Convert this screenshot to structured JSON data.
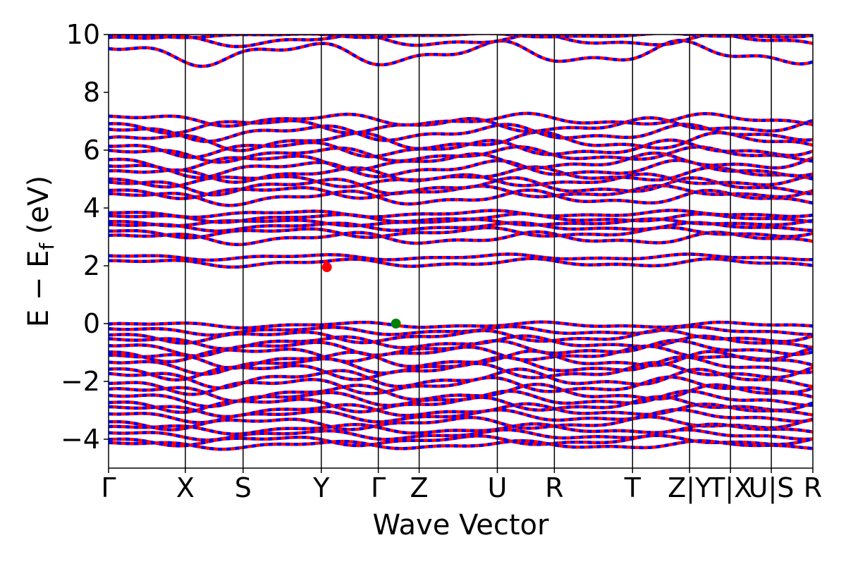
{
  "chart_data": {
    "type": "line",
    "xlabel": "Wave Vector",
    "ylabel": "E − E",
    "ylabel_subscript": "f",
    "ylabel_unit": " (eV)",
    "ylim": [
      -5,
      10
    ],
    "yticks": [
      {
        "value": -4,
        "label": "−4"
      },
      {
        "value": -2,
        "label": "−2"
      },
      {
        "value": 0,
        "label": "0"
      },
      {
        "value": 2,
        "label": "2"
      },
      {
        "value": 4,
        "label": "4"
      },
      {
        "value": 6,
        "label": "6"
      },
      {
        "value": 8,
        "label": "8"
      },
      {
        "value": 10,
        "label": "10"
      }
    ],
    "xlim": [
      0,
      10
    ],
    "kpoints": [
      {
        "label": "Γ",
        "x": 0.0
      },
      {
        "label": "X",
        "x": 1.09
      },
      {
        "label": "S",
        "x": 1.91
      },
      {
        "label": "Y",
        "x": 3.02
      },
      {
        "label": "Γ",
        "x": 3.83
      },
      {
        "label": "Z",
        "x": 4.41
      },
      {
        "label": "U",
        "x": 5.52
      },
      {
        "label": "R",
        "x": 6.33
      },
      {
        "label": "T",
        "x": 7.44
      },
      {
        "label": "Z|Y",
        "x": 8.25
      },
      {
        "label": "T|X",
        "x": 8.83
      },
      {
        "label": "U|S",
        "x": 9.41
      },
      {
        "label": "R",
        "x": 10.0
      }
    ],
    "line_colors": {
      "band_red": "#ff0000",
      "band_blue": "#0000ff",
      "vline": "#000000"
    },
    "markers": [
      {
        "name": "CBM",
        "x": 3.1,
        "y": 1.95,
        "color": "#ff0000"
      },
      {
        "name": "VBM",
        "x": 4.08,
        "y": 0.0,
        "color": "#008000"
      }
    ],
    "bands": {
      "conduction": [
        {
          "y0": 2.1,
          "amp": 0.1,
          "phase": 0.4
        },
        {
          "y0": 2.3,
          "amp": 0.07,
          "phase": 1.3
        },
        {
          "y0": 2.95,
          "amp": 0.15,
          "phase": 0.2
        },
        {
          "y0": 3.15,
          "amp": 0.12,
          "phase": 2.1
        },
        {
          "y0": 3.35,
          "amp": 0.1,
          "phase": 1.0
        },
        {
          "y0": 3.5,
          "amp": 0.08,
          "phase": 2.7
        },
        {
          "y0": 3.65,
          "amp": 0.1,
          "phase": 0.8
        },
        {
          "y0": 3.8,
          "amp": 0.08,
          "phase": 1.9
        },
        {
          "y0": 4.35,
          "amp": 0.18,
          "phase": 0.5
        },
        {
          "y0": 4.55,
          "amp": 0.15,
          "phase": 2.4
        },
        {
          "y0": 4.75,
          "amp": 0.2,
          "phase": 1.1
        },
        {
          "y0": 4.95,
          "amp": 0.15,
          "phase": 3.0
        },
        {
          "y0": 5.15,
          "amp": 0.18,
          "phase": 0.3
        },
        {
          "y0": 5.35,
          "amp": 0.2,
          "phase": 1.7
        },
        {
          "y0": 5.6,
          "amp": 0.2,
          "phase": 2.6
        },
        {
          "y0": 5.85,
          "amp": 0.18,
          "phase": 0.9
        },
        {
          "y0": 6.05,
          "amp": 0.2,
          "phase": 2.0
        },
        {
          "y0": 6.3,
          "amp": 0.22,
          "phase": 0.1
        },
        {
          "y0": 6.6,
          "amp": 0.2,
          "phase": 1.4
        },
        {
          "y0": 6.85,
          "amp": 0.18,
          "phase": 2.8
        },
        {
          "y0": 7.05,
          "amp": 0.15,
          "phase": 0.6
        },
        {
          "y0": 9.35,
          "amp": 0.3,
          "phase": 1.6
        },
        {
          "y0": 9.8,
          "amp": 0.15,
          "phase": 0.2
        },
        {
          "y0": 9.97,
          "amp": 0.05,
          "phase": 2.2
        }
      ],
      "valence": [
        {
          "y0": -0.05,
          "amp": 0.07,
          "phase": 0.0
        },
        {
          "y0": -0.25,
          "amp": 0.1,
          "phase": 1.2
        },
        {
          "y0": -0.45,
          "amp": 0.15,
          "phase": 2.3
        },
        {
          "y0": -0.65,
          "amp": 0.15,
          "phase": 0.7
        },
        {
          "y0": -0.85,
          "amp": 0.18,
          "phase": 1.8
        },
        {
          "y0": -1.05,
          "amp": 0.18,
          "phase": 2.9
        },
        {
          "y0": -1.25,
          "amp": 0.2,
          "phase": 0.4
        },
        {
          "y0": -1.45,
          "amp": 0.2,
          "phase": 1.5
        },
        {
          "y0": -1.65,
          "amp": 0.2,
          "phase": 2.6
        },
        {
          "y0": -1.9,
          "amp": 0.22,
          "phase": 0.9
        },
        {
          "y0": -2.15,
          "amp": 0.2,
          "phase": 2.0
        },
        {
          "y0": -2.4,
          "amp": 0.2,
          "phase": 0.2
        },
        {
          "y0": -2.6,
          "amp": 0.18,
          "phase": 1.3
        },
        {
          "y0": -2.8,
          "amp": 0.18,
          "phase": 2.4
        },
        {
          "y0": -3.0,
          "amp": 0.15,
          "phase": 0.6
        },
        {
          "y0": -3.2,
          "amp": 0.15,
          "phase": 1.7
        },
        {
          "y0": -3.45,
          "amp": 0.15,
          "phase": 2.8
        },
        {
          "y0": -3.65,
          "amp": 0.12,
          "phase": 0.3
        },
        {
          "y0": -3.85,
          "amp": 0.12,
          "phase": 1.4
        },
        {
          "y0": -4.05,
          "amp": 0.12,
          "phase": 2.5
        },
        {
          "y0": -4.2,
          "amp": 0.1,
          "phase": 0.8
        }
      ]
    }
  }
}
